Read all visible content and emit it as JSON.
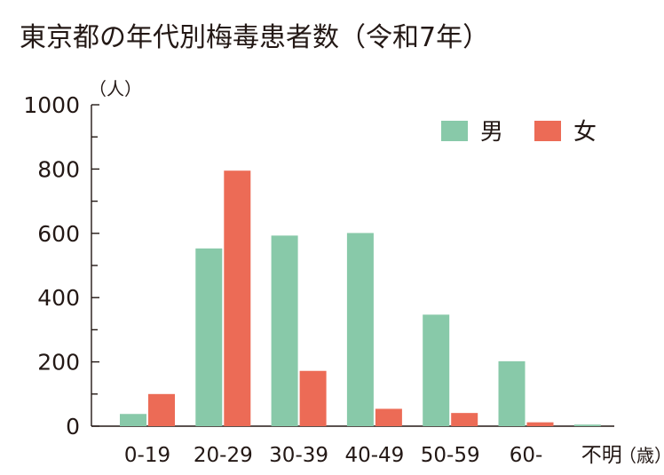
{
  "chart_data": {
    "type": "bar",
    "title": "東京都の年代別梅毒患者数（令和7年）",
    "y_unit_label": "（人）",
    "x_unit_label": "（歳）",
    "categories": [
      "0-19",
      "20-29",
      "30-39",
      "40-49",
      "50-59",
      "60-",
      "不明"
    ],
    "series": [
      {
        "name": "男",
        "color": "#88c9a9",
        "values": [
          38,
          553,
          593,
          601,
          347,
          202,
          5
        ]
      },
      {
        "name": "女",
        "color": "#ec6b56",
        "values": [
          100,
          795,
          172,
          54,
          41,
          12,
          0
        ]
      }
    ],
    "ylim": [
      0,
      1000
    ],
    "y_ticks": [
      0,
      200,
      400,
      600,
      800,
      1000
    ],
    "grid": false,
    "legend_position": "top-right"
  }
}
